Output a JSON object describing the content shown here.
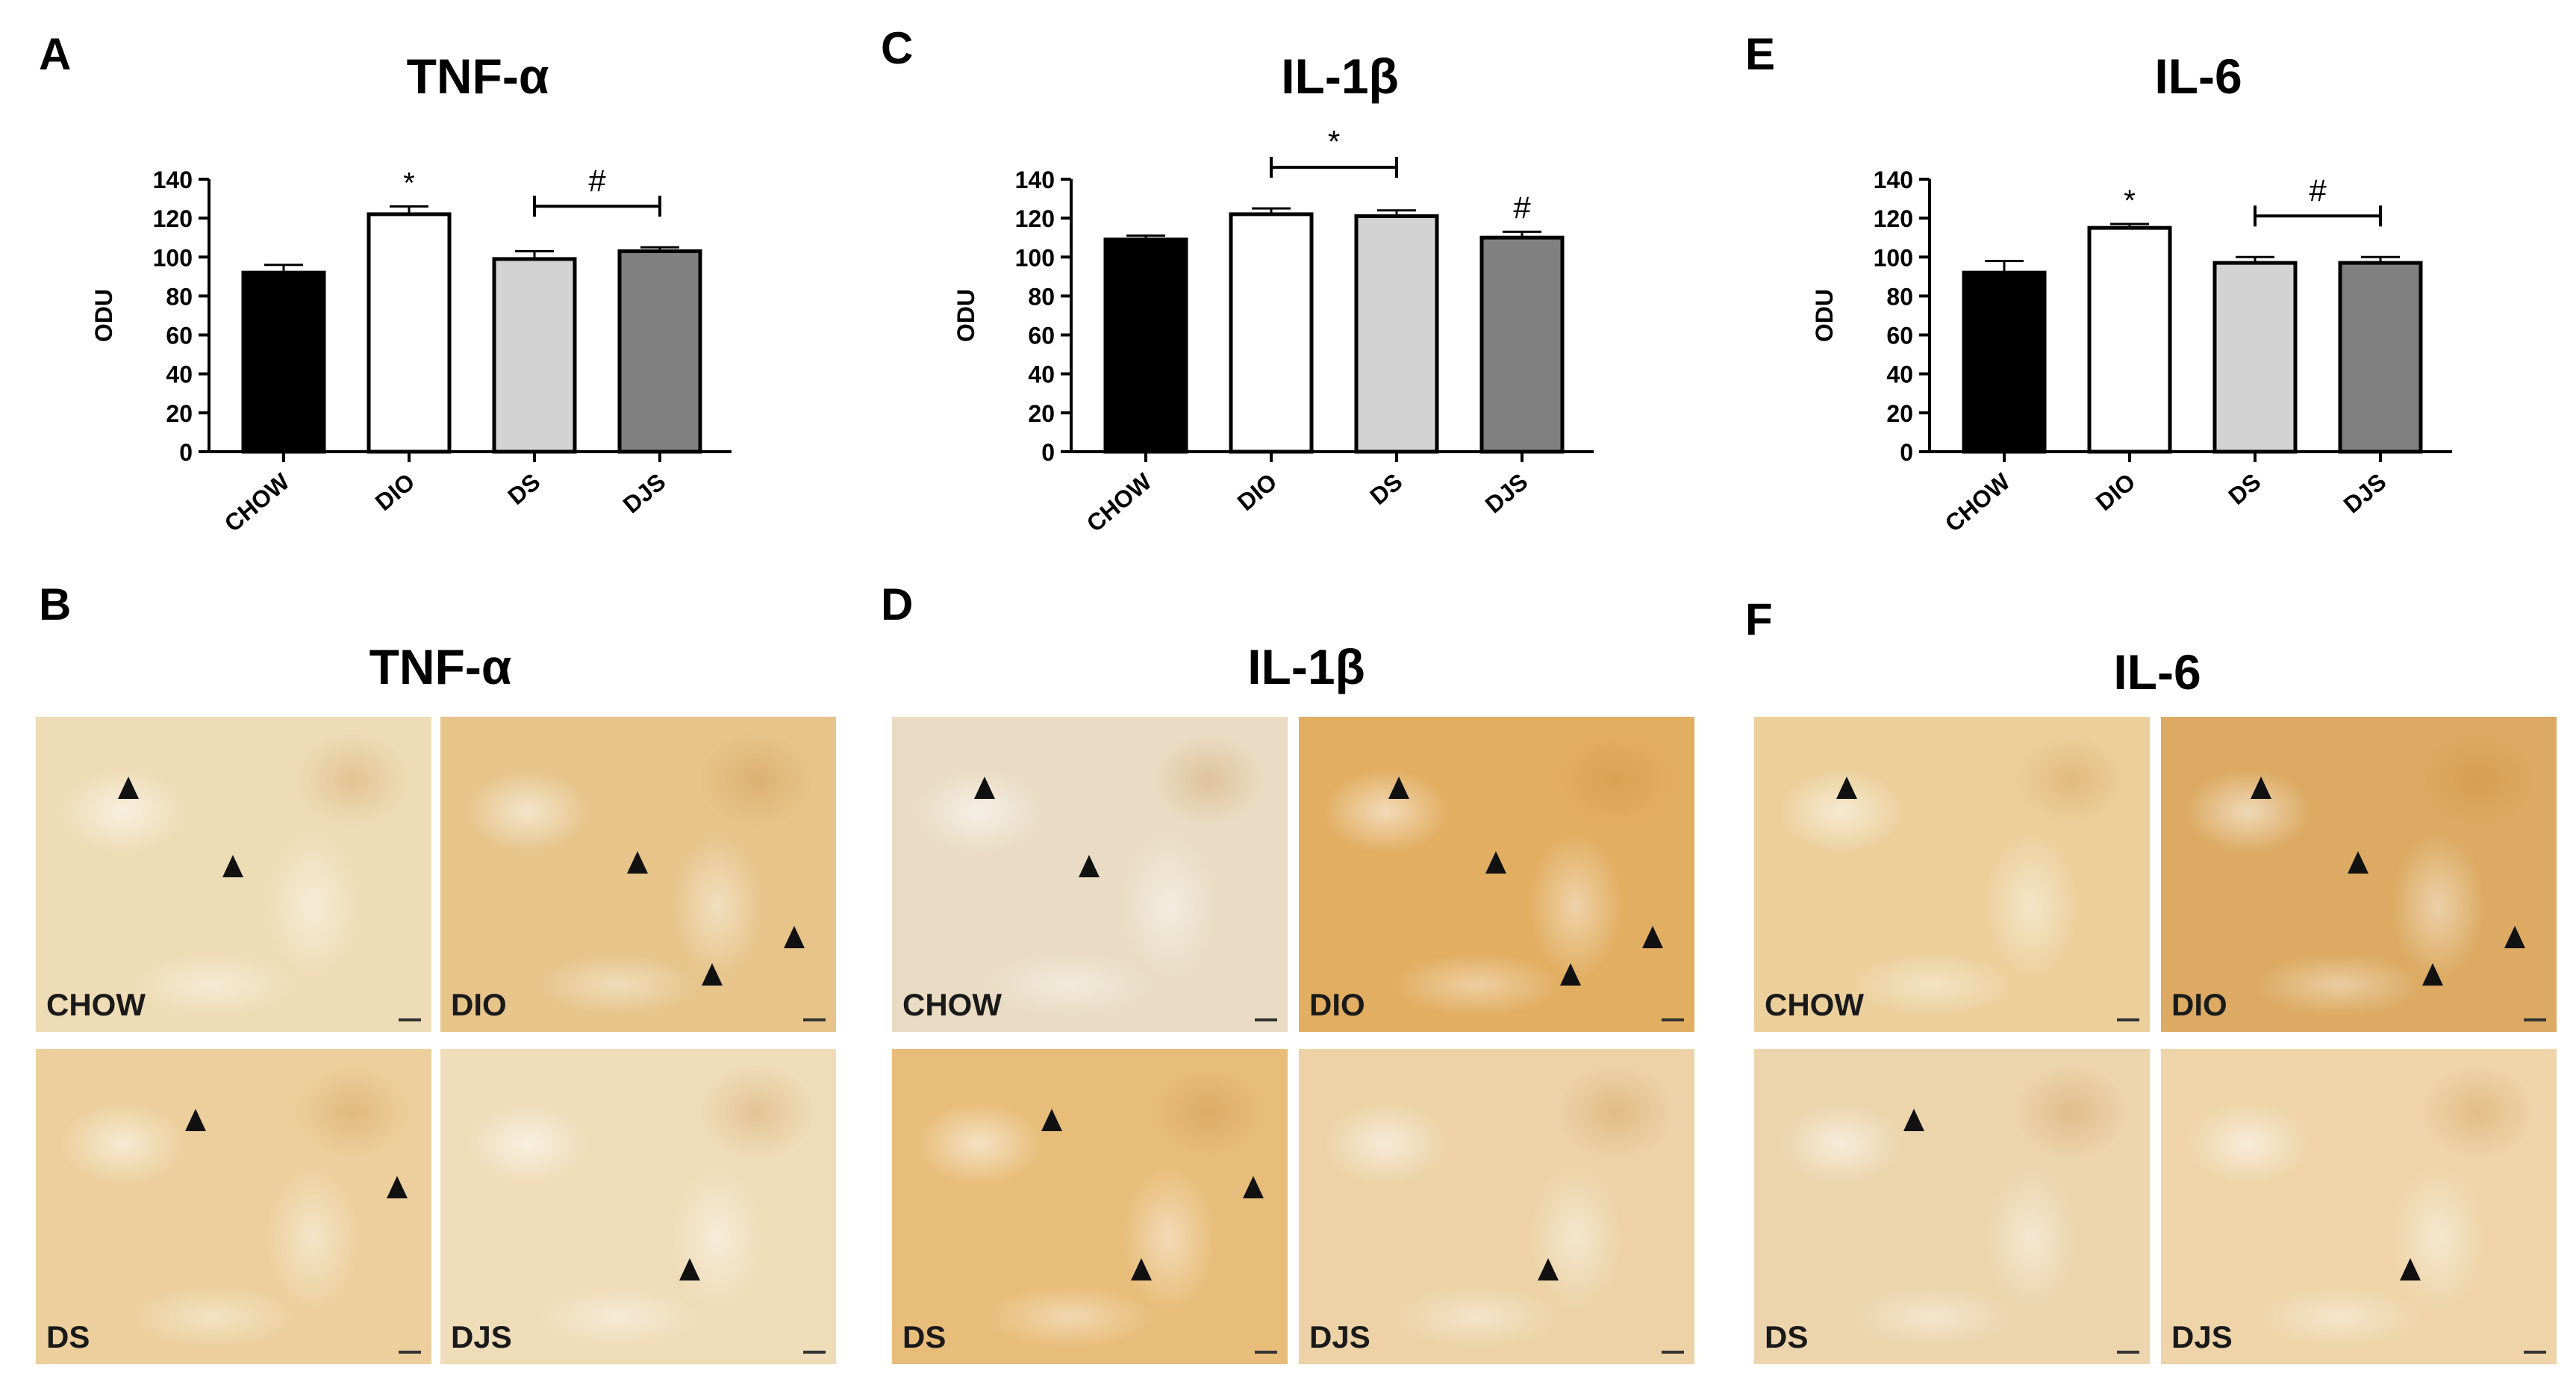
{
  "panel_letters": {
    "A": "A",
    "B": "B",
    "C": "C",
    "D": "D",
    "E": "E",
    "F": "F"
  },
  "chart_data": [
    {
      "type": "bar",
      "panel": "A",
      "title": "TNF-α",
      "ylabel": "ODU",
      "xlabel": "",
      "categories": [
        "CHOW",
        "DIO",
        "DS",
        "DJS"
      ],
      "values": [
        92,
        122,
        99,
        103
      ],
      "errors": [
        4,
        4,
        4,
        2
      ],
      "ylim": [
        0,
        140
      ],
      "yticks": [
        0,
        20,
        40,
        60,
        80,
        100,
        120,
        140
      ],
      "bar_colors": [
        "#000000",
        "#ffffff",
        "#d3d3d3",
        "#808080"
      ],
      "annotations": [
        {
          "text": "*",
          "type": "single",
          "bar": 1
        },
        {
          "text": "#",
          "type": "bracket",
          "from": 2,
          "to": 3
        }
      ]
    },
    {
      "type": "bar",
      "panel": "C",
      "title": "IL-1β",
      "ylabel": "ODU",
      "xlabel": "",
      "categories": [
        "CHOW",
        "DIO",
        "DS",
        "DJS"
      ],
      "values": [
        109,
        122,
        121,
        110
      ],
      "errors": [
        2,
        3,
        3,
        3
      ],
      "ylim": [
        0,
        140
      ],
      "yticks": [
        0,
        20,
        40,
        60,
        80,
        100,
        120,
        140
      ],
      "bar_colors": [
        "#000000",
        "#ffffff",
        "#d3d3d3",
        "#808080"
      ],
      "annotations": [
        {
          "text": "*",
          "type": "bracket",
          "from": 1,
          "to": 2
        },
        {
          "text": "#",
          "type": "single",
          "bar": 3
        }
      ]
    },
    {
      "type": "bar",
      "panel": "E",
      "title": "IL-6",
      "ylabel": "ODU",
      "xlabel": "",
      "categories": [
        "CHOW",
        "DIO",
        "DS",
        "DJS"
      ],
      "values": [
        92,
        115,
        97,
        97
      ],
      "errors": [
        6,
        2,
        3,
        3
      ],
      "ylim": [
        0,
        140
      ],
      "yticks": [
        0,
        20,
        40,
        60,
        80,
        100,
        120,
        140
      ],
      "bar_colors": [
        "#000000",
        "#ffffff",
        "#d3d3d3",
        "#808080"
      ],
      "annotations": [
        {
          "text": "*",
          "type": "single",
          "bar": 1
        },
        {
          "text": "#",
          "type": "bracket",
          "from": 2,
          "to": 3
        }
      ]
    }
  ],
  "micrographs": [
    {
      "panel": "B",
      "title": "TNF-α",
      "tiles": [
        {
          "label": "CHOW",
          "shade": "#eedcb6",
          "arrows": 2
        },
        {
          "label": "DIO",
          "shade": "#e6c48a",
          "arrows": 3
        },
        {
          "label": "DS",
          "shade": "#eccf9c",
          "arrows": 2
        },
        {
          "label": "DJS",
          "shade": "#efdcb8",
          "arrows": 1
        }
      ]
    },
    {
      "panel": "D",
      "title": "IL-1β",
      "tiles": [
        {
          "label": "CHOW",
          "shade": "#eadcc4",
          "arrows": 2
        },
        {
          "label": "DIO",
          "shade": "#e2ae62",
          "arrows": 4
        },
        {
          "label": "DS",
          "shade": "#e8bd7a",
          "arrows": 3
        },
        {
          "label": "DJS",
          "shade": "#ecd2a6",
          "arrows": 1
        }
      ]
    },
    {
      "panel": "F",
      "title": "IL-6",
      "tiles": [
        {
          "label": "CHOW",
          "shade": "#ecd09c",
          "arrows": 1
        },
        {
          "label": "DIO",
          "shade": "#dcaa62",
          "arrows": 4
        },
        {
          "label": "DS",
          "shade": "#ecd4ac",
          "arrows": 1
        },
        {
          "label": "DJS",
          "shade": "#eed4a8",
          "arrows": 1
        }
      ]
    }
  ]
}
